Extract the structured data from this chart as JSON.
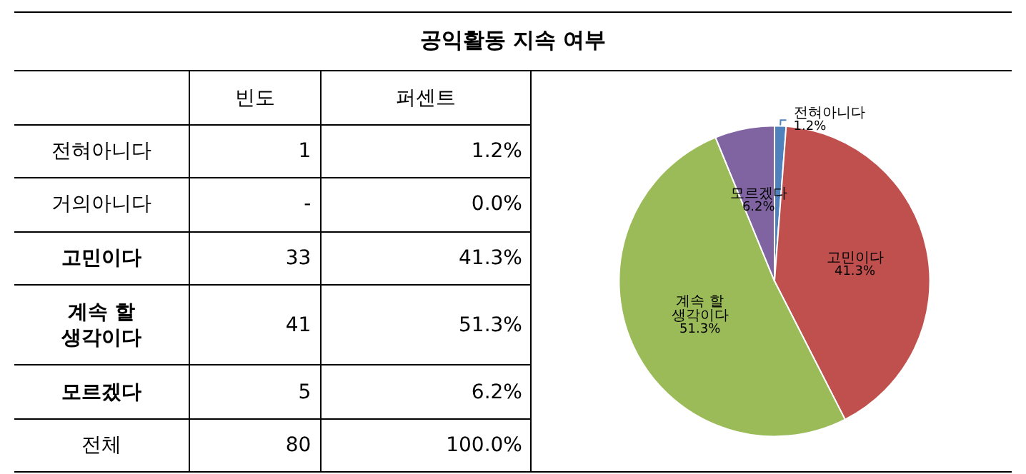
{
  "chart_data": [
    {
      "type": "other",
      "title": "공익활동 지속 여부",
      "annotations": [
        "빈도",
        "퍼센트",
        "전혀아니다",
        "1",
        "1.2%",
        "거의아니다",
        "-",
        "0.0%",
        "고민이다",
        "33",
        "41.3%",
        "계속 할\n생각이다",
        "41",
        "51.3%",
        "모르겠다",
        "5",
        "6.2%",
        "전체",
        "80",
        "100.0%"
      ]
    },
    {
      "type": "pie",
      "categories": [
        "전혀아니다",
        "고민이다",
        "계속 할\n생각이다",
        "모르겠다"
      ],
      "values": [
        1.2,
        41.3,
        51.3,
        6.2
      ],
      "colors": [
        "#4f81bd",
        "#c0504d",
        "#9bbb59",
        "#8064a2"
      ],
      "value_labels": [
        "1.2%",
        "41.3%",
        "51.3%",
        "6.2%"
      ],
      "legend": false
    }
  ]
}
